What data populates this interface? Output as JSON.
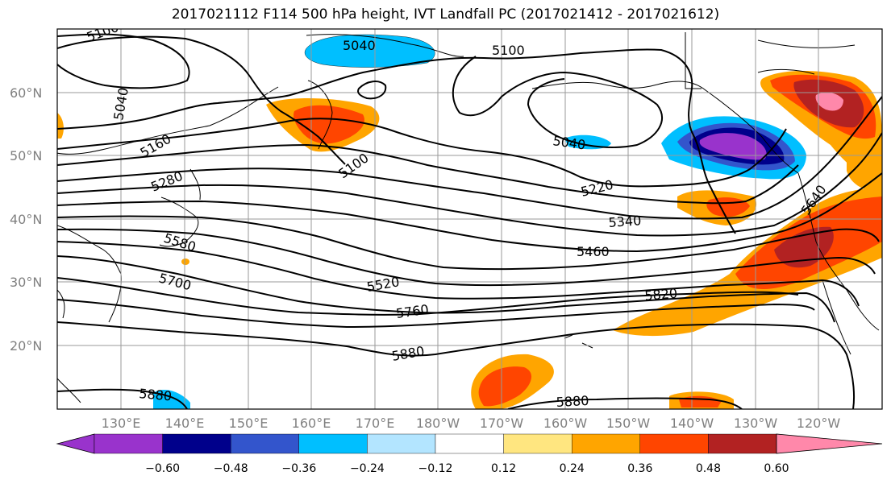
{
  "title": "2017021112 F114 500 hPa height, IVT Landfall PC (2017021412 - 2017021612)",
  "latitude_labels": [
    "60°N",
    "50°N",
    "40°N",
    "30°N",
    "20°N"
  ],
  "longitude_labels": [
    "130°E",
    "140°E",
    "150°E",
    "160°E",
    "170°E",
    "180°W",
    "170°W",
    "160°W",
    "150°W",
    "140°W",
    "130°W",
    "120°W"
  ],
  "contour_labels": [
    "5100",
    "5040",
    "5100",
    "5040",
    "5040",
    "5160",
    "5280",
    "5100",
    "5220",
    "5340",
    "5460",
    "5580",
    "5700",
    "5520",
    "5640",
    "5760",
    "5820",
    "5880",
    "5880",
    "5880"
  ],
  "colorbar": {
    "colors": [
      "#9933cc",
      "#00008b",
      "#3355cc",
      "#00bfff",
      "#b3e5ff",
      "#ffffff",
      "#ffe680",
      "#ffa500",
      "#ff4500",
      "#b22222",
      "#ff88aa"
    ],
    "tick_labels": [
      "−0.60",
      "−0.48",
      "−0.36",
      "−0.24",
      "−0.12",
      "0.12",
      "0.24",
      "0.36",
      "0.48",
      "0.60"
    ]
  }
}
